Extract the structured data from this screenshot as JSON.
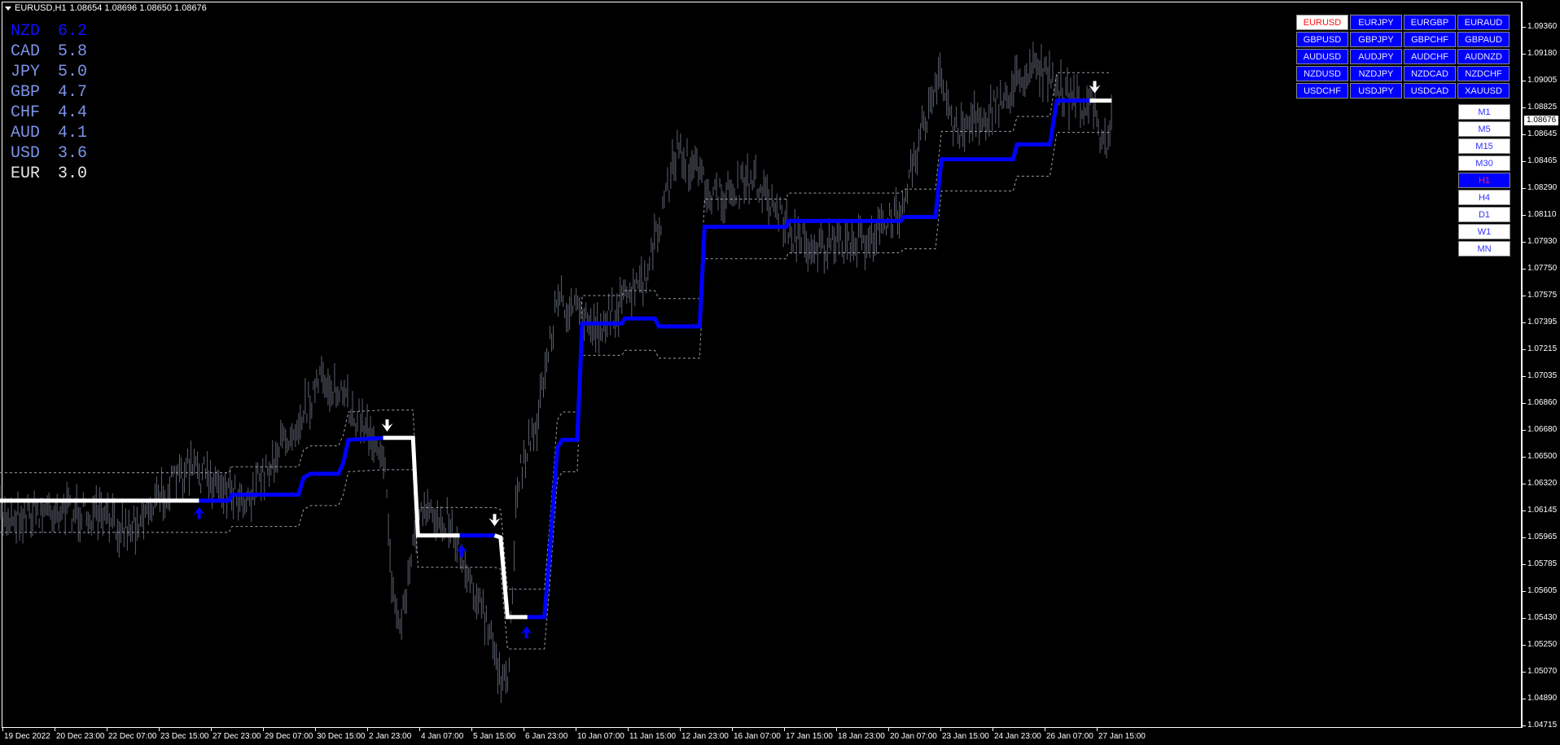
{
  "header": {
    "symbol": "EURUSD,H1",
    "ohlc": "1.08654 1.08696 1.08650 1.08676"
  },
  "strength": [
    {
      "currency": "NZD",
      "value": "6.2"
    },
    {
      "currency": "CAD",
      "value": "5.8"
    },
    {
      "currency": "JPY",
      "value": "5.0"
    },
    {
      "currency": "GBP",
      "value": "4.7"
    },
    {
      "currency": "CHF",
      "value": "4.4"
    },
    {
      "currency": "AUD",
      "value": "4.1"
    },
    {
      "currency": "USD",
      "value": "3.6"
    },
    {
      "currency": "EUR",
      "value": "3.0"
    }
  ],
  "pairs": [
    [
      "EURUSD",
      "EURJPY",
      "EURGBP",
      "EURAUD"
    ],
    [
      "GBPUSD",
      "GBPJPY",
      "GBPCHF",
      "GBPAUD"
    ],
    [
      "AUDUSD",
      "AUDJPY",
      "AUDCHF",
      "AUDNZD"
    ],
    [
      "NZDUSD",
      "NZDJPY",
      "NZDCAD",
      "NZDCHF"
    ],
    [
      "USDCHF",
      "USDJPY",
      "USDCAD",
      "XAUUSD"
    ]
  ],
  "active_pair": "EURUSD",
  "timeframes": [
    "M1",
    "M5",
    "M15",
    "M30",
    "H1",
    "H4",
    "D1",
    "W1",
    "MN"
  ],
  "active_timeframe": "H1",
  "price_axis": [
    "1.09360",
    "1.09180",
    "1.09005",
    "1.08825",
    "1.08645",
    "1.08465",
    "1.08290",
    "1.08110",
    "1.07930",
    "1.07750",
    "1.07575",
    "1.07395",
    "1.07215",
    "1.07035",
    "1.06860",
    "1.06680",
    "1.06500",
    "1.06320",
    "1.06145",
    "1.05965",
    "1.05785",
    "1.05605",
    "1.05430",
    "1.05250",
    "1.05070",
    "1.04890",
    "1.04715"
  ],
  "current_price": "1.08676",
  "time_axis": [
    "19 Dec 2022",
    "20 Dec 23:00",
    "22 Dec 07:00",
    "23 Dec 15:00",
    "27 Dec 23:00",
    "29 Dec 07:00",
    "30 Dec 15:00",
    "2 Jan 23:00",
    "4 Jan 07:00",
    "5 Jan 15:00",
    "6 Jan 23:00",
    "10 Jan 07:00",
    "11 Jan 15:00",
    "12 Jan 23:00",
    "16 Jan 07:00",
    "17 Jan 15:00",
    "18 Jan 23:00",
    "20 Jan 07:00",
    "23 Jan 15:00",
    "24 Jan 23:00",
    "26 Jan 07:00",
    "27 Jan 15:00"
  ],
  "colors": {
    "background": "#000000",
    "bars": "#5c6170",
    "trend_up": "#0000ff",
    "trend_down": "#ffffff",
    "bands": "#9aa0aa"
  }
}
